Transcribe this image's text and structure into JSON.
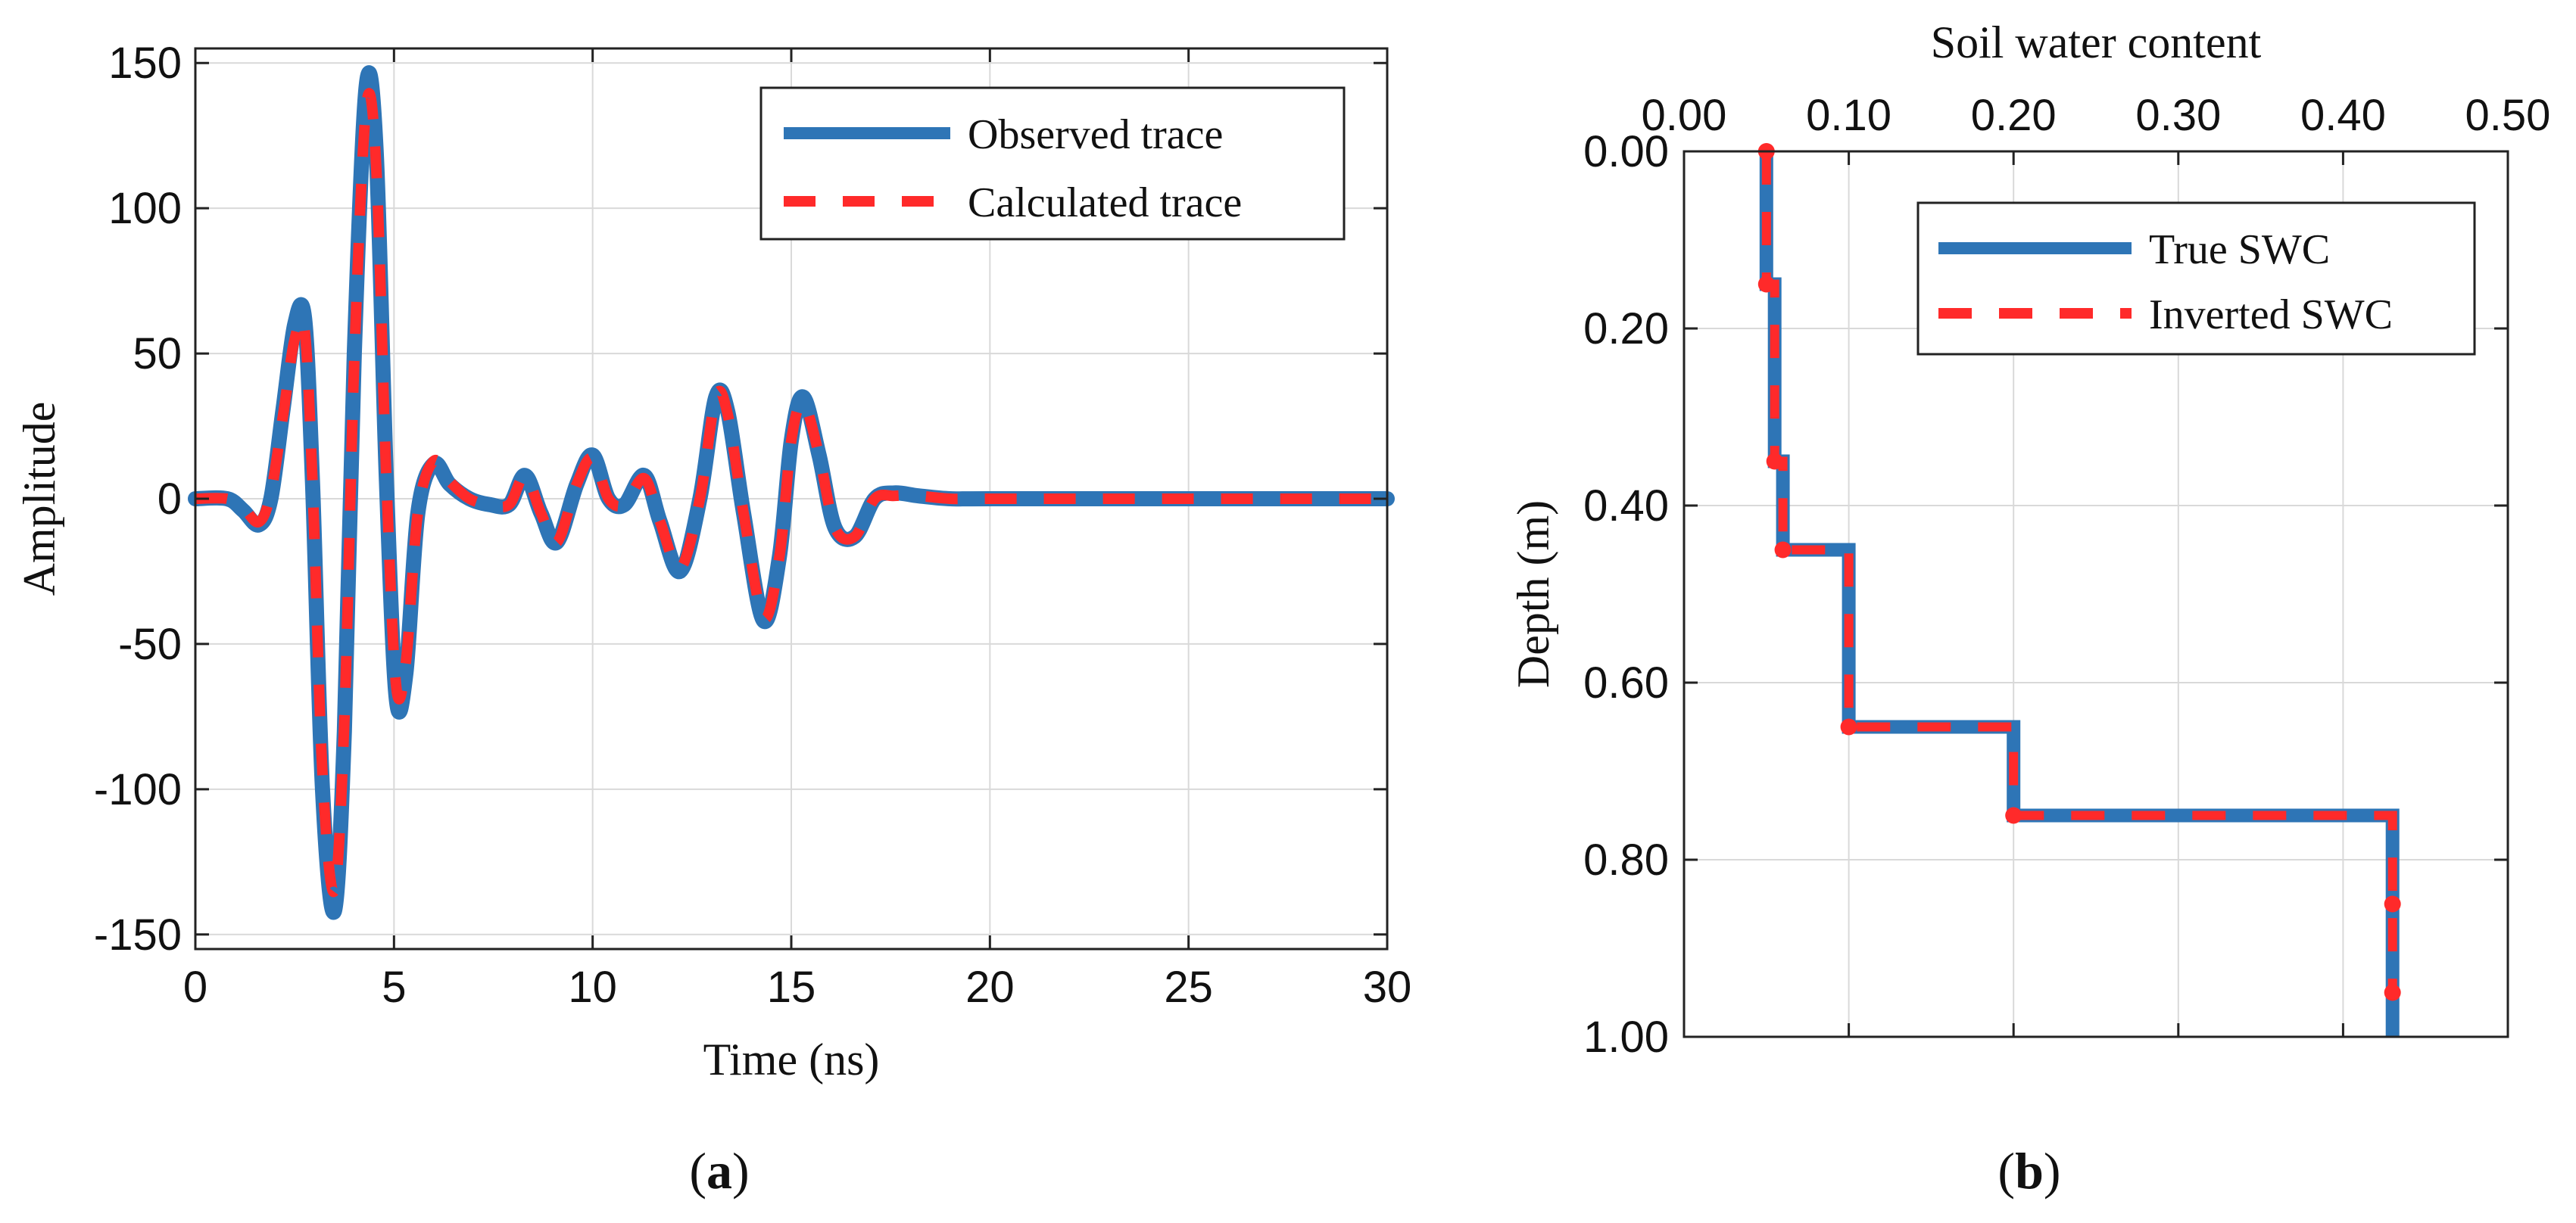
{
  "figure": {
    "panel_a_caption": "a",
    "panel_b_caption": "b"
  },
  "chart_data": [
    {
      "id": "a",
      "type": "line",
      "title": "",
      "xlabel": "Time (ns)",
      "ylabel": "Amplitude",
      "xlim": [
        0,
        30
      ],
      "ylim": [
        -155,
        155
      ],
      "xticks": [
        0,
        5,
        10,
        15,
        20,
        25,
        30
      ],
      "yticks": [
        -150,
        -100,
        -50,
        0,
        50,
        100,
        150
      ],
      "xtick_labels": [
        "0",
        "5",
        "10",
        "15",
        "20",
        "25",
        "30"
      ],
      "ytick_labels": [
        "-150",
        "-100",
        "-50",
        "0",
        "50",
        "100",
        "150"
      ],
      "grid": true,
      "legend_position": "top-right",
      "colors": {
        "observed": "#2e75b6",
        "calculated": "#ff2a2a"
      },
      "series": [
        {
          "name": "Observed trace",
          "style": "solid",
          "x": [
            0,
            0.8,
            1.2,
            1.6,
            1.9,
            2.2,
            2.5,
            2.75,
            2.95,
            3.2,
            3.5,
            3.75,
            4.0,
            4.3,
            4.55,
            4.8,
            5.05,
            5.3,
            5.6,
            6.0,
            6.4,
            6.9,
            7.4,
            7.9,
            8.3,
            8.7,
            9.1,
            9.6,
            10.0,
            10.4,
            10.8,
            11.3,
            11.7,
            12.2,
            12.7,
            13.1,
            13.4,
            13.8,
            14.3,
            14.7,
            15.0,
            15.3,
            15.7,
            16.1,
            16.6,
            17.1,
            17.6,
            18.2,
            19,
            20,
            25,
            30
          ],
          "y": [
            0,
            0,
            -4,
            -9,
            0,
            30,
            60,
            62,
            5,
            -100,
            -142,
            -80,
            50,
            142,
            120,
            10,
            -68,
            -60,
            -5,
            12,
            5,
            0,
            -2,
            -2,
            8,
            -5,
            -15,
            5,
            15,
            0,
            -2,
            8,
            -8,
            -25,
            0,
            35,
            30,
            -5,
            -42,
            -20,
            20,
            35,
            15,
            -10,
            -13,
            0,
            2,
            1,
            0,
            0,
            0,
            0
          ]
        },
        {
          "name": "Calculated trace",
          "style": "dashed",
          "x": [
            0,
            0.8,
            1.2,
            1.6,
            1.9,
            2.2,
            2.5,
            2.75,
            2.95,
            3.2,
            3.5,
            3.75,
            4.0,
            4.3,
            4.55,
            4.8,
            5.05,
            5.3,
            5.6,
            6.0,
            6.4,
            6.9,
            7.4,
            7.9,
            8.3,
            8.7,
            9.1,
            9.6,
            10.0,
            10.4,
            10.8,
            11.3,
            11.7,
            12.2,
            12.7,
            13.1,
            13.4,
            13.8,
            14.3,
            14.7,
            15.0,
            15.3,
            15.7,
            16.1,
            16.6,
            17.1,
            17.6,
            18.2,
            19,
            20,
            25,
            30
          ],
          "y": [
            0,
            0,
            -3,
            -8,
            2,
            28,
            55,
            58,
            5,
            -95,
            -135,
            -76,
            48,
            135,
            115,
            10,
            -64,
            -56,
            -5,
            13,
            6,
            0,
            -2,
            -2,
            8,
            -5,
            -15,
            5,
            14,
            0,
            -2,
            7,
            -8,
            -24,
            0,
            35,
            29,
            -5,
            -41,
            -20,
            20,
            33,
            15,
            -10,
            -13,
            0,
            1,
            1,
            0,
            0,
            0,
            0
          ]
        }
      ]
    },
    {
      "id": "b",
      "type": "line",
      "title": "",
      "xlabel": "Soil water content",
      "ylabel": "Depth (m)",
      "xlim": [
        0,
        0.5
      ],
      "ylim": [
        0,
        1.0
      ],
      "y_inverted": true,
      "x_axis_position": "top",
      "xticks": [
        0,
        0.1,
        0.2,
        0.3,
        0.4,
        0.5
      ],
      "yticks": [
        0,
        0.2,
        0.4,
        0.6,
        0.8,
        1.0
      ],
      "xtick_labels": [
        "0.00",
        "0.10",
        "0.20",
        "0.30",
        "0.40",
        "0.50"
      ],
      "ytick_labels": [
        "0.00",
        "0.20",
        "0.40",
        "0.60",
        "0.80",
        "1.00"
      ],
      "grid": true,
      "legend_position": "top-right",
      "colors": {
        "true": "#2e75b6",
        "inverted": "#ff2a2a"
      },
      "series": [
        {
          "name": "True SWC",
          "style": "solid",
          "x": [
            0.05,
            0.05,
            0.055,
            0.055,
            0.06,
            0.06,
            0.1,
            0.1,
            0.2,
            0.2,
            0.43,
            0.43
          ],
          "y": [
            0,
            0.15,
            0.15,
            0.35,
            0.35,
            0.45,
            0.45,
            0.65,
            0.65,
            0.75,
            0.75,
            1.0
          ]
        },
        {
          "name": "Inverted SWC",
          "style": "dashed",
          "x": [
            0.05,
            0.05,
            0.055,
            0.055,
            0.06,
            0.06,
            0.1,
            0.1,
            0.2,
            0.2,
            0.43,
            0.43
          ],
          "y": [
            0,
            0.15,
            0.15,
            0.35,
            0.35,
            0.45,
            0.45,
            0.65,
            0.65,
            0.75,
            0.75,
            0.95
          ],
          "markers": {
            "x": [
              0.05,
              0.05,
              0.055,
              0.06,
              0.1,
              0.2,
              0.43,
              0.43
            ],
            "y": [
              0,
              0.15,
              0.35,
              0.45,
              0.65,
              0.75,
              0.85,
              0.95
            ]
          }
        }
      ]
    }
  ]
}
